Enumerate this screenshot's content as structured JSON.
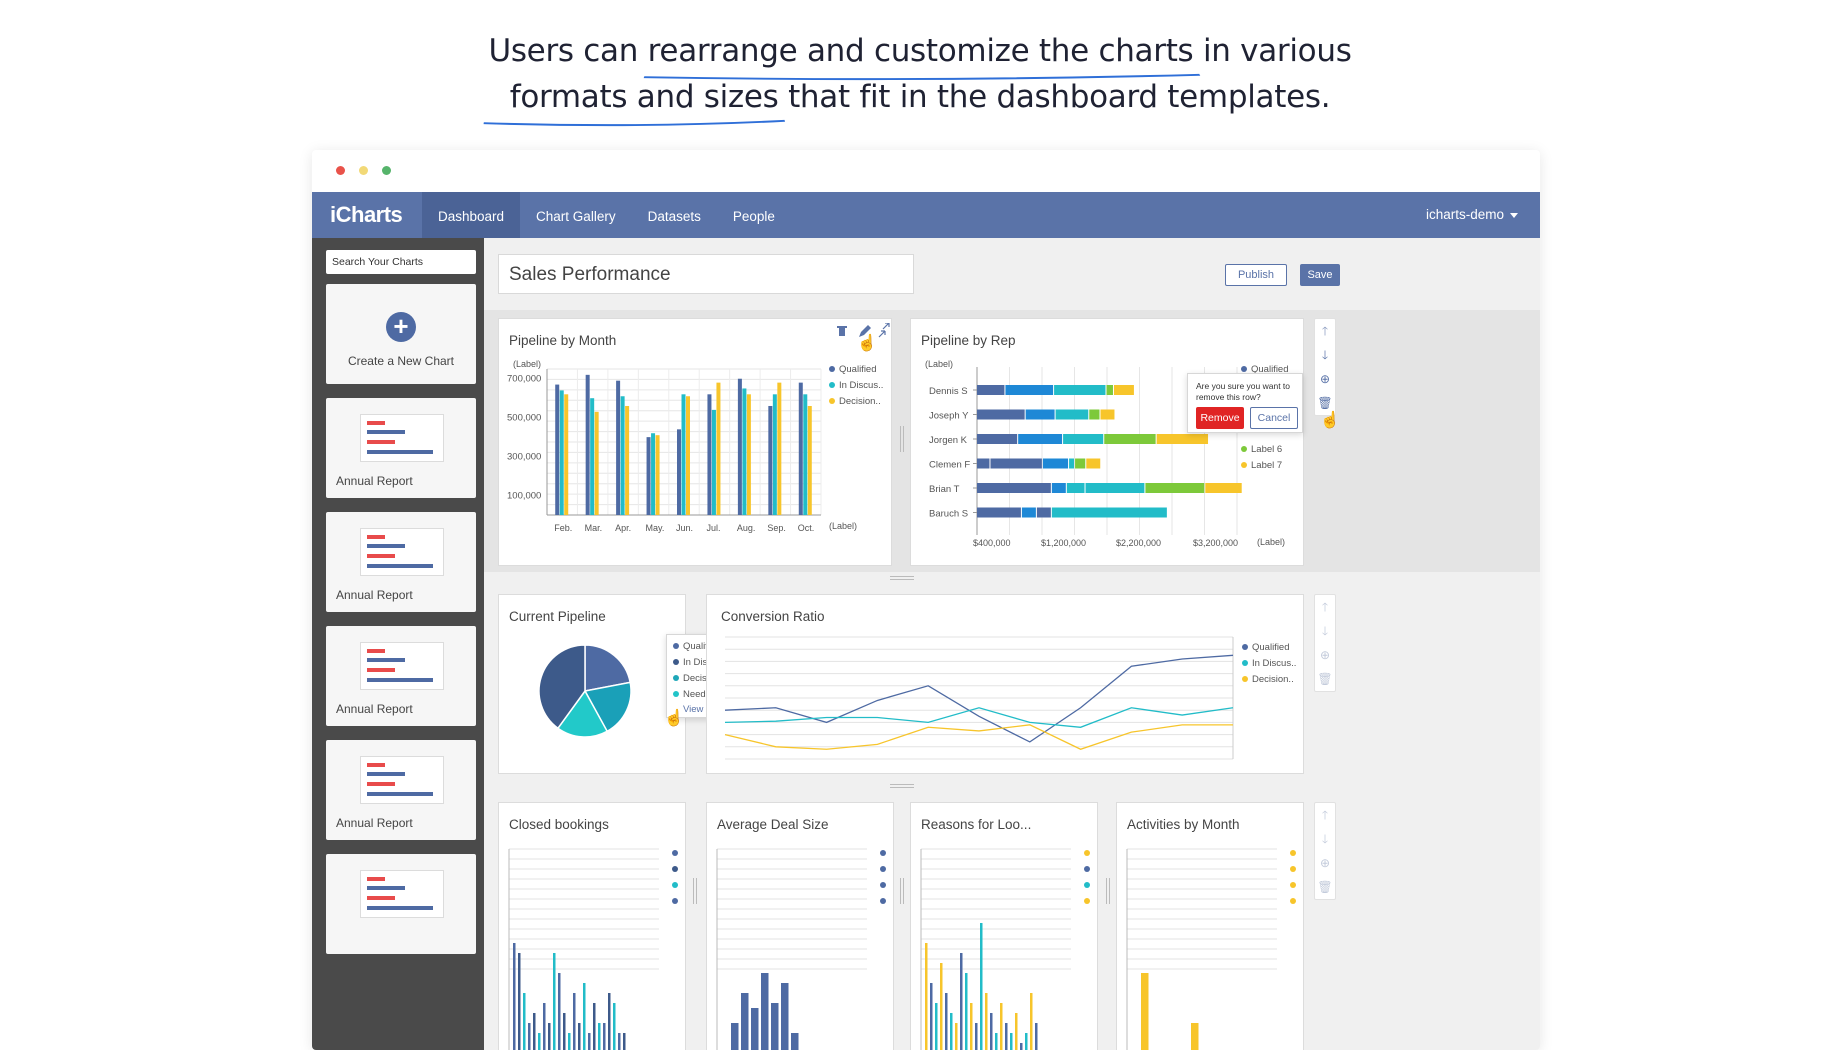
{
  "headline": {
    "line1_pre": "Users can ",
    "line1_ul": "rearrange and customize the charts",
    "line1_post": " in various",
    "line2_ul": "formats and sizes",
    "line2_post": " that fit in the dashboard templates."
  },
  "window_dots": [
    "#e9524a",
    "#f2c94c",
    "#56b46b"
  ],
  "topbar": {
    "logo": "iCharts",
    "nav": [
      "Dashboard",
      "Chart Gallery",
      "Datasets",
      "People"
    ],
    "user": "icharts-demo"
  },
  "sidebar": {
    "search_placeholder": "Search Your Charts",
    "new_chart_label": "Create a New Chart",
    "new_chart_icon": "+",
    "thumbs": [
      "Annual Report",
      "Annual Report",
      "Annual Report",
      "Annual Report",
      ""
    ]
  },
  "header": {
    "title": "Sales Performance",
    "publish": "Publish",
    "save": "Save"
  },
  "colors": {
    "navy": "#4e6aa3",
    "blue": "#1e88d6",
    "teal": "#22bcc8",
    "green": "#7dc93a",
    "yellow": "#f7c52b",
    "dark": "#3d5a8a",
    "red": "#e02424"
  },
  "icons": {
    "trash": "trash-icon",
    "edit": "pencil-icon",
    "expand": "expand-icon",
    "up": "arrow-up-icon",
    "down": "arrow-down-icon",
    "add": "add-circle-icon",
    "hand": "hand-pointer-icon"
  },
  "cards": {
    "pipeline_month": {
      "title": "Pipeline by Month",
      "label_top": "(Label)",
      "label_x": "(Label)",
      "legend": [
        "Qualified",
        "In Discus..",
        "Decision.."
      ]
    },
    "pipeline_rep": {
      "title": "Pipeline by Rep",
      "label_top": "(Label)",
      "label_x": "(Label)",
      "legend": [
        "Qualified",
        "Label 6",
        "Label 7"
      ],
      "popup_text_1": "Are you sure you want to",
      "popup_text_2": "remove this row?",
      "remove": "Remove",
      "cancel": "Cancel"
    },
    "current_pipeline": {
      "title": "Current Pipeline",
      "legend": [
        "Qualified",
        "In Discussion",
        "Decision Makers",
        "Needs Scoping"
      ],
      "view_all": "View all"
    },
    "conversion_ratio": {
      "title": "Conversion Ratio",
      "legend": [
        "Qualified",
        "In Discus..",
        "Decision.."
      ]
    },
    "closed_bookings": {
      "title": "Closed bookings"
    },
    "average_deal": {
      "title": "Average Deal Size"
    },
    "reasons": {
      "title": "Reasons for Loo..."
    },
    "activities": {
      "title": "Activities by Month"
    }
  },
  "chart_data": [
    {
      "type": "bar",
      "title": "Pipeline by Month",
      "categories": [
        "Feb.",
        "Mar.",
        "Apr.",
        "May.",
        "Jun.",
        "Jul.",
        "Aug.",
        "Sep.",
        "Oct."
      ],
      "yticks": [
        "700,000",
        "500,000",
        "300,000",
        "100,000"
      ],
      "ylim": [
        0,
        750000
      ],
      "series": [
        {
          "name": "Qualified",
          "values": [
            670000,
            720000,
            690000,
            400000,
            440000,
            620000,
            700000,
            560000,
            680000
          ]
        },
        {
          "name": "In Discus..",
          "values": [
            640000,
            600000,
            610000,
            420000,
            620000,
            540000,
            650000,
            620000,
            620000
          ]
        },
        {
          "name": "Decision..",
          "values": [
            620000,
            530000,
            560000,
            410000,
            610000,
            680000,
            620000,
            680000,
            560000
          ]
        }
      ]
    },
    {
      "type": "bar",
      "title": "Pipeline by Rep",
      "categories": [
        "Dennis S",
        "Joseph Y",
        "Jorgen K",
        "Clemen F",
        "Brian T",
        "Baruch S"
      ],
      "xticks": [
        "$400,000",
        "$1,200,000",
        "$2,200,000",
        "$3,200,000"
      ],
      "xlim": [
        0,
        3300000
      ],
      "segments": [
        [
          [
            "navy",
            380000
          ],
          [
            "blue",
            650000
          ],
          [
            "teal",
            700000
          ],
          [
            "green",
            100000
          ],
          [
            "yellow",
            280000
          ]
        ],
        [
          [
            "navy",
            650000
          ],
          [
            "blue",
            400000
          ],
          [
            "teal",
            450000
          ],
          [
            "green",
            150000
          ],
          [
            "yellow",
            200000
          ]
        ],
        [
          [
            "navy",
            550000
          ],
          [
            "blue",
            600000
          ],
          [
            "teal",
            550000
          ],
          [
            "green",
            700000
          ],
          [
            "yellow",
            700000
          ]
        ],
        [
          [
            "navy",
            180000
          ],
          [
            "navy",
            700000
          ],
          [
            "blue",
            350000
          ],
          [
            "teal",
            80000
          ],
          [
            "green",
            150000
          ],
          [
            "yellow",
            200000
          ]
        ],
        [
          [
            "navy",
            1000000
          ],
          [
            "blue",
            200000
          ],
          [
            "teal",
            250000
          ],
          [
            "teal",
            800000
          ],
          [
            "green",
            800000
          ],
          [
            "yellow",
            500000
          ]
        ],
        [
          [
            "navy",
            600000
          ],
          [
            "blue",
            200000
          ],
          [
            "navy",
            200000
          ],
          [
            "teal",
            1550000
          ]
        ]
      ]
    },
    {
      "type": "pie",
      "title": "Current Pipeline",
      "labels": [
        "Qualified",
        "In Discussion",
        "Decision Makers",
        "Needs Scoping"
      ],
      "values": [
        22,
        20,
        18,
        40
      ]
    },
    {
      "type": "line",
      "title": "Conversion Ratio",
      "x": [
        0,
        1,
        2,
        3,
        4,
        5,
        6,
        7,
        8,
        9,
        10
      ],
      "series": [
        {
          "name": "Qualified",
          "values": [
            40,
            42,
            30,
            48,
            60,
            35,
            14,
            42,
            76,
            82,
            85
          ]
        },
        {
          "name": "In Discus..",
          "values": [
            30,
            31,
            34,
            34,
            30,
            42,
            30,
            26,
            42,
            36,
            42
          ]
        },
        {
          "name": "Decision..",
          "values": [
            20,
            10,
            8,
            12,
            26,
            23,
            28,
            8,
            22,
            28,
            28
          ]
        }
      ]
    }
  ]
}
